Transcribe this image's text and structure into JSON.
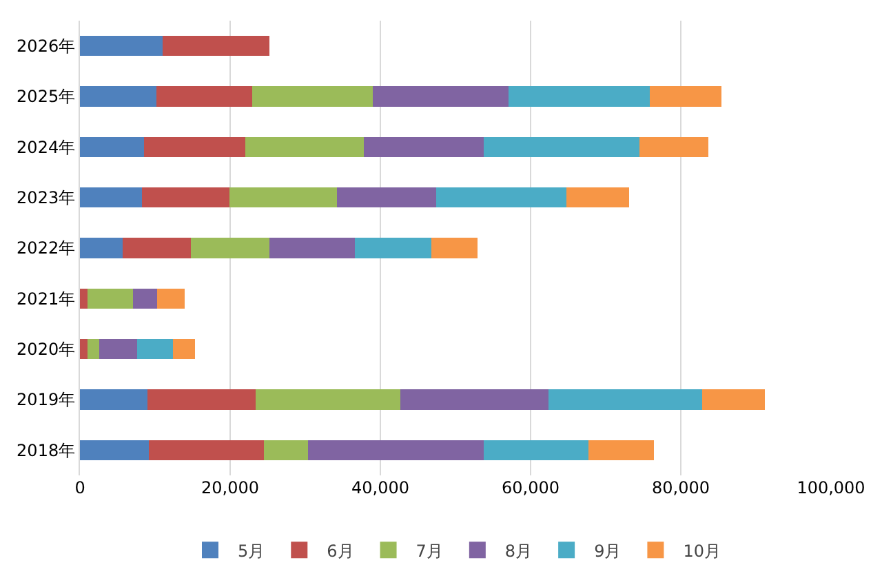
{
  "chart_data": {
    "type": "bar",
    "orientation": "horizontal",
    "stacked": true,
    "categories": [
      "2026年",
      "2025年",
      "2024年",
      "2023年",
      "2022年",
      "2021年",
      "2020年",
      "2019年",
      "2018年"
    ],
    "series": [
      {
        "name": "5月",
        "color": "#4f81bd",
        "values": [
          11000,
          10200,
          8500,
          8300,
          5700,
          0,
          0,
          9000,
          9200
        ]
      },
      {
        "name": "6月",
        "color": "#c0504d",
        "values": [
          14200,
          12700,
          13500,
          11600,
          9100,
          1000,
          1000,
          14400,
          15300
        ]
      },
      {
        "name": "7月",
        "color": "#9bbb59",
        "values": [
          null,
          16100,
          15800,
          14300,
          10400,
          6100,
          1600,
          19300,
          5900
        ]
      },
      {
        "name": "8月",
        "color": "#8064a2",
        "values": [
          null,
          18100,
          16000,
          13200,
          11400,
          3200,
          5000,
          19700,
          23400
        ]
      },
      {
        "name": "9月",
        "color": "#4bacc6",
        "values": [
          null,
          18800,
          20700,
          17400,
          10200,
          0,
          4800,
          20400,
          13900
        ]
      },
      {
        "name": "10月",
        "color": "#f79646",
        "values": [
          null,
          9500,
          9200,
          8300,
          6100,
          3600,
          2900,
          8400,
          8700
        ]
      }
    ],
    "xlim": [
      0,
      100000
    ],
    "xticks": [
      {
        "value": 0,
        "label": "0"
      },
      {
        "value": 20000,
        "label": "20,000"
      },
      {
        "value": 40000,
        "label": "40,000"
      },
      {
        "value": 60000,
        "label": "60,000"
      },
      {
        "value": 80000,
        "label": "80,000"
      },
      {
        "value": 100000,
        "label": "100,000"
      }
    ],
    "grid": "x",
    "legend": "bottom"
  }
}
